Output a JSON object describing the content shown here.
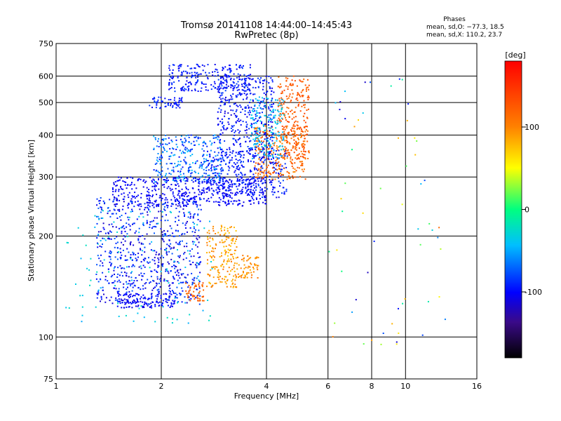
{
  "chart_data": {
    "type": "scatter",
    "title": "Tromsø 20141108 14:44:00–14:45:43",
    "subtitle": "RwPretec (8p)",
    "xlabel": "Frequency [MHz]",
    "ylabel": "Stationary phase Virtual Height [km]",
    "x_scale": "log",
    "y_scale": "log",
    "xlim": [
      1,
      16
    ],
    "ylim": [
      75,
      750
    ],
    "x_ticks": [
      1,
      2,
      4,
      6,
      8,
      10,
      16
    ],
    "x_tick_labels": [
      "1",
      "2",
      "4",
      "6",
      "8",
      "10",
      "16"
    ],
    "y_ticks": [
      75,
      100,
      200,
      300,
      400,
      500,
      600,
      750
    ],
    "y_tick_labels": [
      "75",
      "100",
      "200",
      "300",
      "400",
      "500",
      "600",
      "750"
    ],
    "grid": true,
    "colorbar": {
      "label": "[deg]",
      "range": [
        -180,
        180
      ],
      "ticks": [
        100,
        0,
        -100
      ],
      "tick_labels": [
        "100",
        "0",
        "-100"
      ]
    },
    "phases_annotation": {
      "title": "Phases",
      "line1": "mean, sd,O: −77.3, 18.5",
      "line2": "mean, sd,X: 110.2, 23.7"
    },
    "point_groups": [
      {
        "name": "F-trace lower branch",
        "freq": [
          1.45,
          4.0
        ],
        "height": [
          245,
          300
        ],
        "phase": [
          -110,
          -95
        ],
        "count": 480
      },
      {
        "name": "F-trace middle branch",
        "freq": [
          2.7,
          4.6
        ],
        "height": [
          260,
          360
        ],
        "phase": [
          -110,
          -80
        ],
        "count": 320
      },
      {
        "name": "F-trace X oblique",
        "freq": [
          3.7,
          5.2
        ],
        "height": [
          295,
          430
        ],
        "phase": [
          95,
          135
        ],
        "count": 280
      },
      {
        "name": "F high band",
        "freq": [
          4.3,
          5.3
        ],
        "height": [
          340,
          600
        ],
        "phase": [
          110,
          140
        ],
        "count": 230
      },
      {
        "name": "F upper region",
        "freq": [
          2.9,
          4.2
        ],
        "height": [
          330,
          600
        ],
        "phase": [
          -115,
          -80
        ],
        "count": 420
      },
      {
        "name": "F cyan region",
        "freq": [
          3.6,
          4.5
        ],
        "height": [
          340,
          520
        ],
        "phase": [
          -50,
          -30
        ],
        "count": 160
      },
      {
        "name": "F cluster 2.0-3.0 MHz",
        "freq": [
          1.9,
          3.0
        ],
        "height": [
          290,
          400
        ],
        "phase": [
          -100,
          -40
        ],
        "count": 300
      },
      {
        "name": "Top band ~600 km",
        "freq": [
          2.1,
          3.6
        ],
        "height": [
          540,
          650
        ],
        "phase": [
          -110,
          -80
        ],
        "count": 240
      },
      {
        "name": "Band ~480-500 km",
        "freq": [
          1.85,
          2.3
        ],
        "height": [
          480,
          520
        ],
        "phase": [
          -110,
          -80
        ],
        "count": 60
      },
      {
        "name": "Lower cluster 1.4-2.6 MHz",
        "freq": [
          1.3,
          2.6
        ],
        "height": [
          125,
          260
        ],
        "phase": [
          -120,
          -70
        ],
        "count": 700
      },
      {
        "name": "Lower cluster cyan fringe",
        "freq": [
          1.05,
          2.8
        ],
        "height": [
          110,
          240
        ],
        "phase": [
          -50,
          -20
        ],
        "count": 120
      },
      {
        "name": "E-trace ~125 km",
        "freq": [
          1.5,
          2.2
        ],
        "height": [
          122,
          135
        ],
        "phase": [
          -110,
          -95
        ],
        "count": 120
      },
      {
        "name": "Orange cluster 2.4-2.6 MHz",
        "freq": [
          2.35,
          2.65
        ],
        "height": [
          128,
          145
        ],
        "phase": [
          105,
          135
        ],
        "count": 50
      },
      {
        "name": "Yellow cluster ~3 MHz",
        "freq": [
          2.7,
          3.3
        ],
        "height": [
          140,
          215
        ],
        "phase": [
          70,
          110
        ],
        "count": 180
      },
      {
        "name": "Cluster 3.3-3.8 MHz",
        "freq": [
          3.3,
          3.8
        ],
        "height": [
          150,
          175
        ],
        "phase": [
          80,
          110
        ],
        "count": 60
      },
      {
        "name": "Sparse scatter above 6 MHz",
        "freq": [
          6.0,
          13.0
        ],
        "height": [
          80,
          680
        ],
        "phase": [
          -120,
          120
        ],
        "count": 60
      }
    ]
  }
}
